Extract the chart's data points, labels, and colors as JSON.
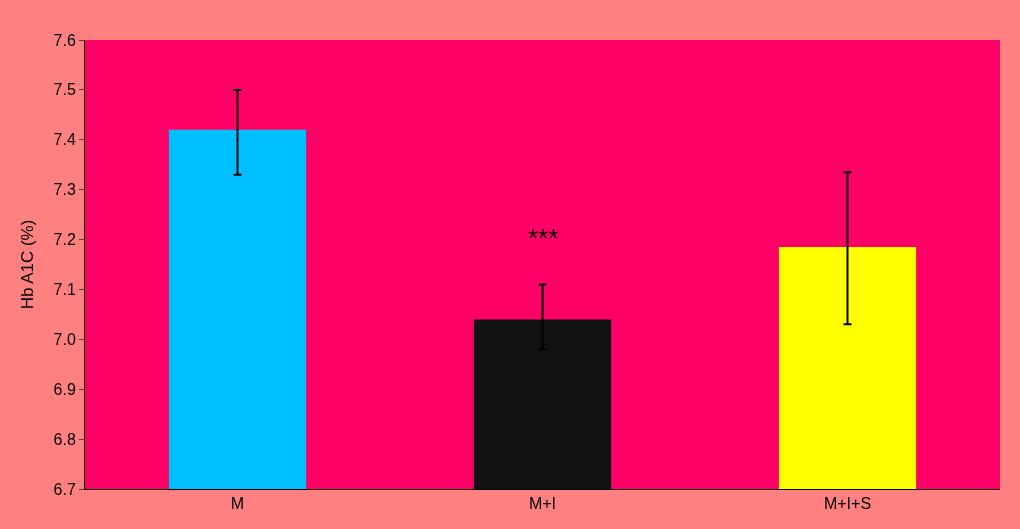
{
  "chart_data": {
    "type": "bar",
    "ylabel": "Hb A1C (%)",
    "categories": [
      "M",
      "M+I",
      "M+I+S"
    ],
    "values": [
      7.42,
      7.04,
      7.185
    ],
    "colors": [
      "#00bfff",
      "#111111",
      "#ffff00"
    ],
    "errors": [
      [
        7.33,
        7.5
      ],
      [
        6.98,
        7.11
      ],
      [
        7.03,
        7.335
      ]
    ],
    "ylim": [
      6.7,
      7.6
    ],
    "yticks": [
      {
        "value": 6.7,
        "label": "6.7"
      },
      {
        "value": 6.8,
        "label": "6.8"
      },
      {
        "value": 6.9,
        "label": "6.9"
      },
      {
        "value": 7.0,
        "label": "7.0"
      },
      {
        "value": 7.1,
        "label": "7.1"
      },
      {
        "value": 7.2,
        "label": "7.2"
      },
      {
        "value": 7.3,
        "label": "7.3"
      },
      {
        "value": 7.4,
        "label": "7.4"
      },
      {
        "value": 7.5,
        "label": "7.5"
      },
      {
        "value": 7.6,
        "label": "7.6"
      }
    ],
    "annotations": [
      "***"
    ],
    "grid": false,
    "legend": false
  }
}
